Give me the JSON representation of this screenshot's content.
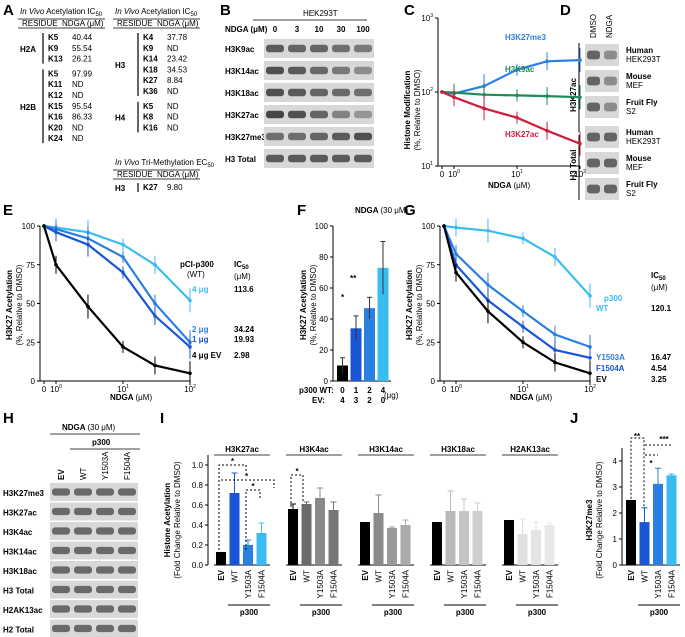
{
  "panels": [
    "A",
    "B",
    "C",
    "D",
    "E",
    "F",
    "G",
    "H",
    "I",
    "J"
  ],
  "A": {
    "title_ac_italic": "In Vivo",
    "title_ac_rest": " Acetylation IC",
    "title_ac_sub": "50",
    "title_me_italic": "In Vivo",
    "title_me_rest": " Tri-Methylation EC",
    "title_me_sub": "50",
    "col_residue": "RESIDUE",
    "col_ndga": "NDGA (μM)",
    "left": [
      {
        "group": "H2A",
        "rows": [
          [
            "K5",
            "40.44"
          ],
          [
            "K9",
            "55.54"
          ],
          [
            "K13",
            "26.21"
          ]
        ]
      },
      {
        "group": "H2B",
        "rows": [
          [
            "K5",
            "97.99"
          ],
          [
            "K11",
            "ND"
          ],
          [
            "K12",
            "ND"
          ],
          [
            "K15",
            "95.54"
          ],
          [
            "K16",
            "86.33"
          ],
          [
            "K20",
            "ND"
          ],
          [
            "K24",
            "ND"
          ]
        ]
      }
    ],
    "right": [
      {
        "group": "H3",
        "rows": [
          [
            "K4",
            "37.78"
          ],
          [
            "K9",
            "ND"
          ],
          [
            "K14",
            "23.42"
          ],
          [
            "K18",
            "34.53"
          ],
          [
            "K27",
            "8.84"
          ],
          [
            "K36",
            "ND"
          ]
        ]
      },
      {
        "group": "H4",
        "rows": [
          [
            "K5",
            "ND"
          ],
          [
            "K8",
            "ND"
          ],
          [
            "K16",
            "ND"
          ]
        ]
      }
    ],
    "me": {
      "group": "H3",
      "rows": [
        [
          "K27",
          "9.80"
        ]
      ]
    }
  },
  "B": {
    "cell_line": "HEK293T",
    "dose_label": "NDGA (μM)",
    "doses": [
      "0",
      "3",
      "10",
      "30",
      "100"
    ],
    "rows": [
      "H3K9ac",
      "H3K14ac",
      "H3K18ac",
      "H3K27ac",
      "H3K27me3",
      "H3 Total"
    ]
  },
  "C": {
    "ylabel": "Histone Modification",
    "ylabel2": "(%, Relative to DMSO)",
    "xlabel": "NDGA",
    "xunit": "(μM)",
    "yticks": [
      "10",
      "10",
      "10"
    ],
    "ytick_exp": [
      "1",
      "2",
      "3"
    ],
    "xticks": [
      "0",
      "10",
      "10",
      "10"
    ],
    "xtick_exp": [
      "",
      "0",
      "1",
      "2"
    ],
    "series_labels": [
      "H3K27me3",
      "H3K9ac",
      "H3K27ac"
    ]
  },
  "D": {
    "cols": [
      "DMSO",
      "NDGA"
    ],
    "group1": "H3K27ac",
    "group2": "H3 Total",
    "species": [
      [
        "Human",
        "HEK293T"
      ],
      [
        "Mouse",
        "MEF"
      ],
      [
        "Fruit Fly",
        "S2"
      ],
      [
        "Human",
        "HEK293T"
      ],
      [
        "Mouse",
        "MEF"
      ],
      [
        "Fruit Fly",
        "S2"
      ]
    ]
  },
  "E": {
    "ylabel": "H3K27 Acetylation",
    "ylabel2": "(%, Relative to DMSO)",
    "xlabel": "NDGA",
    "xunit": "(μM)",
    "yticks": [
      "0",
      "25",
      "50",
      "75",
      "100"
    ],
    "legend_head": "pCI-p300",
    "legend_head2": "(WT)",
    "ic_head": "IC",
    "ic_sub": "50",
    "ic_unit": "(μM)",
    "labels": [
      [
        "4 μg",
        "113.6"
      ],
      [
        "2 μg",
        "34.24"
      ],
      [
        "1 μg",
        "19.93"
      ],
      [
        "4 μg EV",
        "2.98"
      ]
    ]
  },
  "F": {
    "title": "NDGA",
    "title_conc": "(30 μM)",
    "ylabel": "H3K27 Acetylation",
    "ylabel2": "(%, Relative to DMSO)",
    "yticks": [
      "0",
      "20",
      "40",
      "60",
      "80",
      "100"
    ],
    "row1_label": "p300 WT:",
    "row2_label": "EV:",
    "wt": [
      "0",
      "1",
      "2",
      "4"
    ],
    "ev": [
      "4",
      "3",
      "2",
      "0"
    ],
    "unit": "(μg)",
    "sig": [
      "*",
      "**"
    ]
  },
  "G": {
    "ylabel": "H3K27 Acetylation",
    "ylabel2": "(%, Relative to DMSO)",
    "xlabel": "NDGA",
    "xunit": "(μM)",
    "yticks": [
      "0",
      "25",
      "50",
      "75",
      "100"
    ],
    "p300": "p300",
    "ic_head": "IC",
    "ic_sub": "50",
    "ic_unit": "(μM)",
    "labels": [
      [
        "WT",
        "120.1"
      ],
      [
        "Y1503A",
        "16.47"
      ],
      [
        "F1504A",
        "4.54"
      ],
      [
        "EV",
        "3.25"
      ]
    ]
  },
  "H": {
    "title": "NDGA",
    "title_conc": "(30 μM)",
    "p300": "p300",
    "lanes": [
      "EV",
      "WT",
      "Y1503A",
      "F1504A"
    ],
    "rows": [
      "H3K27me3",
      "H3K27ac",
      "H3K4ac",
      "H3K14ac",
      "H3K18ac",
      "H3 Total",
      "H2AK13ac",
      "H2 Total"
    ]
  },
  "I": {
    "ylabel": "Histone Acetylation",
    "ylabel2": "(Fold Change Relative to DMSO)",
    "yticks": [
      "0.0",
      "0.2",
      "0.4",
      "0.6",
      "0.8",
      "1.0"
    ],
    "groups": [
      "H3K27ac",
      "H3K4ac",
      "H3K14ac",
      "H3K18ac",
      "H2AK13ac"
    ],
    "lanes": [
      "EV",
      "WT",
      "Y1503A",
      "F1504A"
    ],
    "p300": "p300",
    "sig": "*"
  },
  "J": {
    "ylabel": "H3K27me3",
    "ylabel2": "(Fold Change Relative to DMSO)",
    "yticks": [
      "0",
      "1",
      "2",
      "3",
      "4"
    ],
    "lanes": [
      "EV",
      "WT",
      "Y1503A",
      "F1504A"
    ],
    "p300": "p300",
    "sig": [
      "**",
      "***",
      "*"
    ]
  },
  "chart_data": [
    {
      "panel": "C",
      "type": "line",
      "xlabel": "NDGA (μM)",
      "ylabel": "Histone Modification (%, Relative to DMSO)",
      "yscale": "log",
      "ylim": [
        10,
        1000
      ],
      "xscale": "log",
      "x": [
        0,
        1,
        3,
        10,
        30,
        100
      ],
      "series": [
        {
          "name": "H3K27me3",
          "color": "#2b7fe0",
          "values": [
            100,
            95,
            120,
            200,
            260,
            270
          ]
        },
        {
          "name": "H3K9ac",
          "color": "#1f8a5a",
          "values": [
            100,
            98,
            92,
            90,
            88,
            85
          ]
        },
        {
          "name": "H3K27ac",
          "color": "#cc1f3c",
          "values": [
            100,
            85,
            60,
            45,
            30,
            20
          ]
        }
      ]
    },
    {
      "panel": "E",
      "type": "line",
      "xlabel": "NDGA (μM)",
      "ylabel": "H3K27 Acetylation (%, Relative to DMSO)",
      "ylim": [
        0,
        100
      ],
      "xscale": "log",
      "x": [
        0,
        1,
        3,
        10,
        30,
        100
      ],
      "series": [
        {
          "name": "4 μg",
          "color": "#3bbcf0",
          "values": [
            100,
            99,
            96,
            88,
            75,
            52
          ]
        },
        {
          "name": "2 μg",
          "color": "#2b7fe0",
          "values": [
            100,
            98,
            92,
            80,
            50,
            25
          ]
        },
        {
          "name": "1 μg",
          "color": "#1856d6",
          "values": [
            100,
            96,
            88,
            70,
            42,
            22
          ]
        },
        {
          "name": "4 μg EV",
          "color": "#000000",
          "values": [
            100,
            75,
            48,
            22,
            10,
            5
          ]
        }
      ]
    },
    {
      "panel": "F",
      "type": "bar",
      "ylabel": "H3K27 Acetylation (%, Relative to DMSO)",
      "ylim": [
        0,
        100
      ],
      "categories": [
        "0/4",
        "1/3",
        "2/2",
        "4/0"
      ],
      "colors": [
        "#000000",
        "#1856d6",
        "#2b7fe0",
        "#3bbcf0"
      ],
      "values": [
        10,
        34,
        47,
        73
      ],
      "errors": [
        5,
        8,
        7,
        17
      ]
    },
    {
      "panel": "G",
      "type": "line",
      "xlabel": "NDGA (μM)",
      "ylabel": "H3K27 Acetylation (%, Relative to DMSO)",
      "ylim": [
        0,
        100
      ],
      "xscale": "log",
      "x": [
        0,
        1,
        3,
        10,
        30,
        100
      ],
      "series": [
        {
          "name": "WT",
          "color": "#3bbcf0",
          "values": [
            100,
            99,
            97,
            92,
            80,
            55
          ]
        },
        {
          "name": "Y1503A",
          "color": "#2b7fe0",
          "values": [
            100,
            82,
            62,
            45,
            30,
            22
          ]
        },
        {
          "name": "F1504A",
          "color": "#1856d6",
          "values": [
            100,
            75,
            52,
            35,
            20,
            15
          ]
        },
        {
          "name": "EV",
          "color": "#000000",
          "values": [
            100,
            70,
            45,
            25,
            12,
            5
          ]
        }
      ]
    },
    {
      "panel": "I",
      "type": "bar",
      "ylabel": "Histone Acetylation (Fold Change Relative to DMSO)",
      "ylim": [
        0,
        1.1
      ],
      "groups": [
        "H3K27ac",
        "H3K4ac",
        "H3K14ac",
        "H3K18ac",
        "H2AK13ac"
      ],
      "categories": [
        "EV",
        "WT",
        "Y1503A",
        "F1504A"
      ],
      "values": [
        [
          0.13,
          0.72,
          0.2,
          0.32
        ],
        [
          0.56,
          0.61,
          0.67,
          0.55
        ],
        [
          0.43,
          0.52,
          0.37,
          0.4
        ],
        [
          0.43,
          0.54,
          0.54,
          0.54
        ],
        [
          0.45,
          0.31,
          0.35,
          0.4
        ]
      ],
      "errors": [
        [
          0,
          0.2,
          0.05,
          0.1
        ],
        [
          0.05,
          0.02,
          0.1,
          0.08
        ],
        [
          0,
          0.18,
          0.01,
          0.05
        ],
        [
          0,
          0.2,
          0.12,
          0.08
        ],
        [
          0,
          0.15,
          0.08,
          0.02
        ]
      ]
    },
    {
      "panel": "J",
      "type": "bar",
      "ylabel": "H3K27me3 (Fold Change Relative to DMSO)",
      "ylim": [
        0,
        4.5
      ],
      "categories": [
        "EV",
        "WT",
        "Y1503A",
        "F1504A"
      ],
      "colors": [
        "#000000",
        "#1856d6",
        "#2b7fe0",
        "#3bbcf0"
      ],
      "values": [
        2.5,
        1.65,
        3.12,
        3.45
      ],
      "errors": [
        0,
        0.55,
        0.6,
        0.05
      ]
    }
  ]
}
